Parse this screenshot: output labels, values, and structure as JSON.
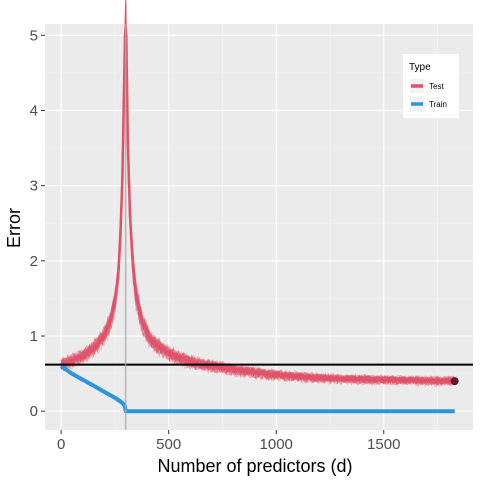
{
  "chart_data": {
    "type": "line",
    "xlabel": "Number of predictors (d)",
    "ylabel": "Error",
    "xlim": [
      -75,
      1915
    ],
    "ylim": [
      -0.25,
      5.15
    ],
    "x_ticks": [
      0,
      500,
      1000,
      1500
    ],
    "x_tick_labels": [
      "0",
      "500",
      "1000",
      "1500"
    ],
    "y_ticks": [
      0,
      1,
      2,
      3,
      4,
      5
    ],
    "y_tick_labels": [
      "0",
      "1",
      "2",
      "3",
      "4",
      "5"
    ],
    "grid": true,
    "legend": {
      "title": "Type",
      "placement": "top-right",
      "entries": [
        {
          "label": "Test",
          "color": "#E0526A"
        },
        {
          "label": "Train",
          "color": "#2B96DC"
        }
      ]
    },
    "series": [
      {
        "name": "Test",
        "color": "#E0526A",
        "x": [
          0,
          50,
          100,
          150,
          200,
          230,
          250,
          265,
          275,
          285,
          292,
          297,
          300,
          303,
          310,
          320,
          335,
          350,
          380,
          420,
          480,
          550,
          650,
          800,
          1000,
          1200,
          1400,
          1600,
          1830
        ],
        "y": [
          0.62,
          0.67,
          0.73,
          0.83,
          1.0,
          1.2,
          1.45,
          1.8,
          2.3,
          3.1,
          4.2,
          5.0,
          5.1,
          5.0,
          3.6,
          2.6,
          1.9,
          1.5,
          1.15,
          0.93,
          0.8,
          0.7,
          0.62,
          0.55,
          0.48,
          0.44,
          0.42,
          0.41,
          0.4
        ]
      },
      {
        "name": "Train",
        "color": "#2B96DC",
        "x": [
          0,
          50,
          100,
          150,
          200,
          250,
          280,
          295,
          300,
          320,
          1830
        ],
        "y": [
          0.6,
          0.5,
          0.42,
          0.34,
          0.26,
          0.18,
          0.12,
          0.08,
          0.0,
          0.0,
          0.0
        ]
      }
    ],
    "reference_lines": [
      {
        "orientation": "horizontal",
        "y": 0.62,
        "color": "#000000"
      },
      {
        "orientation": "vertical",
        "x": 300,
        "color": "#aaaaaa"
      }
    ],
    "highlighted_point": {
      "x": 1830,
      "y": 0.4,
      "color": "#6b1a2a"
    }
  }
}
